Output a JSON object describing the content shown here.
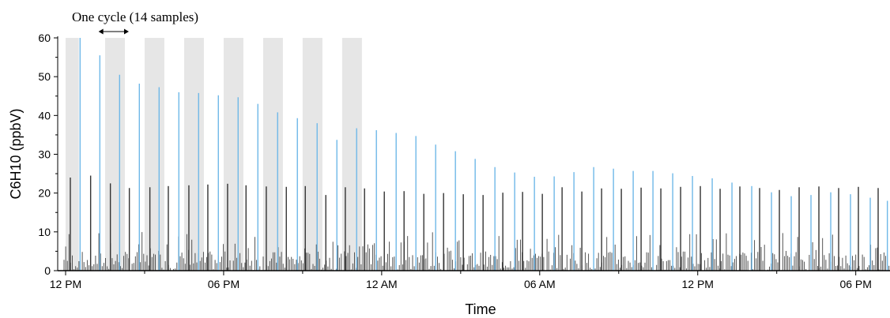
{
  "chart_data": {
    "type": "bar",
    "title": "",
    "xlabel": "Time",
    "ylabel": "C6H10 (ppbV)",
    "ylim": [
      0,
      60
    ],
    "yticks": [
      0,
      10,
      20,
      30,
      40,
      50,
      60
    ],
    "x_unit": "hours since start of plot",
    "x_range_hours": [
      -0.3,
      31.3
    ],
    "xticks": [
      {
        "label": "12 PM",
        "hour": 0
      },
      {
        "label": "06 PM",
        "hour": 6
      },
      {
        "label": "12 AM",
        "hour": 12
      },
      {
        "label": "06 AM",
        "hour": 18
      },
      {
        "label": "12 PM",
        "hour": 24
      },
      {
        "label": "06 PM",
        "hour": 30
      }
    ],
    "annotation": {
      "text": "One cycle (14 samples)",
      "from_hour": 1.25,
      "to_hour": 2.4
    },
    "shaded_bands_hours": [
      [
        0,
        0.5
      ],
      [
        1.5,
        2.25
      ],
      [
        3.0,
        3.75
      ],
      [
        4.5,
        5.25
      ],
      [
        6.0,
        6.75
      ],
      [
        7.5,
        8.25
      ],
      [
        9.0,
        9.75
      ],
      [
        10.5,
        11.25
      ]
    ],
    "colors": {
      "peak_series": "#6fb8e8",
      "sample_series": "#333333",
      "band": "#e6e6e6"
    },
    "series": [
      {
        "values_hours": [
          0.55,
          1.3,
          2.05,
          2.8,
          3.55,
          4.3,
          5.05,
          5.8,
          6.55,
          7.3,
          8.05,
          8.8,
          9.55,
          10.3,
          11.05,
          11.8,
          12.55,
          13.3,
          14.05,
          14.8,
          15.55,
          16.3,
          17.05,
          17.8,
          18.55,
          19.3,
          20.05,
          20.8,
          21.55,
          22.3,
          23.05,
          23.8,
          24.55,
          25.3,
          26.05,
          26.8,
          27.55,
          28.3,
          29.05,
          29.8,
          30.55,
          31.2
        ],
        "values": [
          60,
          55.5,
          50.5,
          48.2,
          47.3,
          46,
          45.8,
          45.2,
          44.7,
          43,
          40.8,
          39.3,
          38,
          33.7,
          36.7,
          36.2,
          35.5,
          34.7,
          32.5,
          30.8,
          28.8,
          26.7,
          25.3,
          24.2,
          24.3,
          25.4,
          26.7,
          26.3,
          25.7,
          25.7,
          25.1,
          24.4,
          23.8,
          22.7,
          21.8,
          20.2,
          19.2,
          19.5,
          20.2,
          19.7,
          18.8,
          18
        ]
      },
      {
        "values_hours": [
          0.18,
          0.95,
          1.7,
          2.42,
          3.2,
          3.9,
          4.68,
          5.4,
          6.15,
          6.85,
          7.62,
          8.38,
          9.1,
          9.88,
          10.62,
          11.35,
          12.1,
          12.85,
          13.6,
          14.35,
          15.1,
          15.85,
          16.6,
          17.35,
          18.1,
          18.85,
          19.6,
          20.35,
          21.1,
          21.85,
          22.6,
          23.35,
          24.1,
          24.85,
          25.6,
          26.35,
          27.1,
          27.85,
          28.6,
          29.35,
          30.1,
          30.85
        ],
        "values": [
          24,
          24.5,
          22.5,
          21.3,
          21.5,
          21.8,
          22,
          22.2,
          22.4,
          22,
          21.7,
          21.6,
          21.8,
          19.5,
          21.5,
          21.2,
          20.4,
          20.5,
          19.8,
          20,
          19.7,
          19.5,
          20.1,
          20.3,
          19.8,
          21.5,
          20.4,
          21.2,
          21.1,
          21.4,
          21.2,
          21.6,
          21.8,
          21.1,
          21.7,
          21.3,
          20.8,
          21.5,
          21.7,
          21.3,
          21.6,
          21.3
        ]
      }
    ]
  }
}
